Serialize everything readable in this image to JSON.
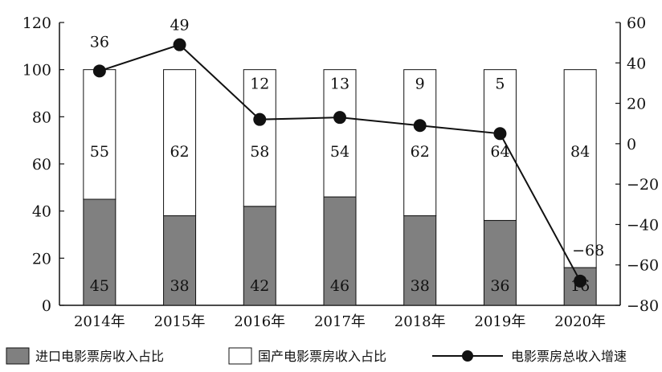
{
  "chart_data": {
    "type": "bar",
    "stacked": true,
    "categories": [
      "2014年",
      "2015年",
      "2016年",
      "2017年",
      "2018年",
      "2019年",
      "2020年"
    ],
    "series": [
      {
        "name": "进口电影票房收入占比",
        "values": [
          45,
          38,
          42,
          46,
          38,
          36,
          16
        ],
        "color": "#808080",
        "axis": "left"
      },
      {
        "name": "国产电影票房收入占比",
        "values": [
          55,
          62,
          58,
          54,
          62,
          64,
          84
        ],
        "color": "#ffffff",
        "axis": "left"
      }
    ],
    "line_series": {
      "name": "电影票房总收入增速",
      "values": [
        36,
        49,
        12,
        13,
        9,
        5,
        -68
      ],
      "color": "#111111",
      "axis": "right"
    },
    "left_axis": {
      "ylim": [
        0,
        120
      ],
      "ticks": [
        "0",
        "20",
        "40",
        "60",
        "80",
        "100",
        "120"
      ]
    },
    "right_axis": {
      "ylim": [
        -80,
        60
      ],
      "ticks": [
        "−80",
        "−60",
        "−40",
        "−20",
        "0",
        "20",
        "40",
        "60"
      ]
    },
    "line_labels": [
      "36",
      "49",
      "12",
      "13",
      "9",
      "5",
      "−68"
    ],
    "legend": {
      "position": "bottom",
      "items": [
        "进口电影票房收入占比",
        "国产电影票房收入占比",
        "电影票房总收入增速"
      ]
    }
  }
}
